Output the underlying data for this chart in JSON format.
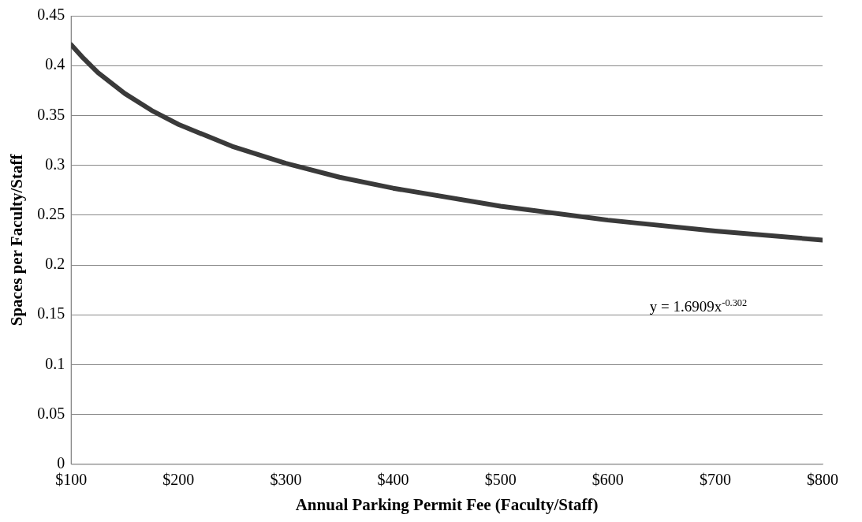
{
  "chart_data": {
    "type": "line",
    "xlabel": "Annual Parking Permit Fee (Faculty/Staff)",
    "ylabel": "Spaces per Faculty/Staff",
    "series": [
      {
        "color": "#3a3a3a",
        "x": [
          100,
          110,
          125,
          150,
          175,
          200,
          250,
          300,
          350,
          400,
          500,
          600,
          700,
          800
        ],
        "values": [
          0.421,
          0.409,
          0.393,
          0.372,
          0.355,
          0.341,
          0.319,
          0.302,
          0.288,
          0.277,
          0.259,
          0.245,
          0.234,
          0.225
        ]
      }
    ],
    "xlim": [
      100,
      800
    ],
    "xticks": [
      {
        "value": 100,
        "label": "$100"
      },
      {
        "value": 200,
        "label": "$200"
      },
      {
        "value": 300,
        "label": "$300"
      },
      {
        "value": 400,
        "label": "$400"
      },
      {
        "value": 500,
        "label": "$500"
      },
      {
        "value": 600,
        "label": "$600"
      },
      {
        "value": 700,
        "label": "$700"
      },
      {
        "value": 800,
        "label": "$800"
      }
    ],
    "ylim": [
      0,
      0.45
    ],
    "yticks": [
      0,
      0.05,
      0.1,
      0.15,
      0.2,
      0.25,
      0.3,
      0.35,
      0.4,
      0.45
    ],
    "grid": "y",
    "legend": false,
    "marker": "none",
    "line_style": "solid",
    "annotations": [
      "y = 1.6909x$^{-0.302}$"
    ]
  }
}
